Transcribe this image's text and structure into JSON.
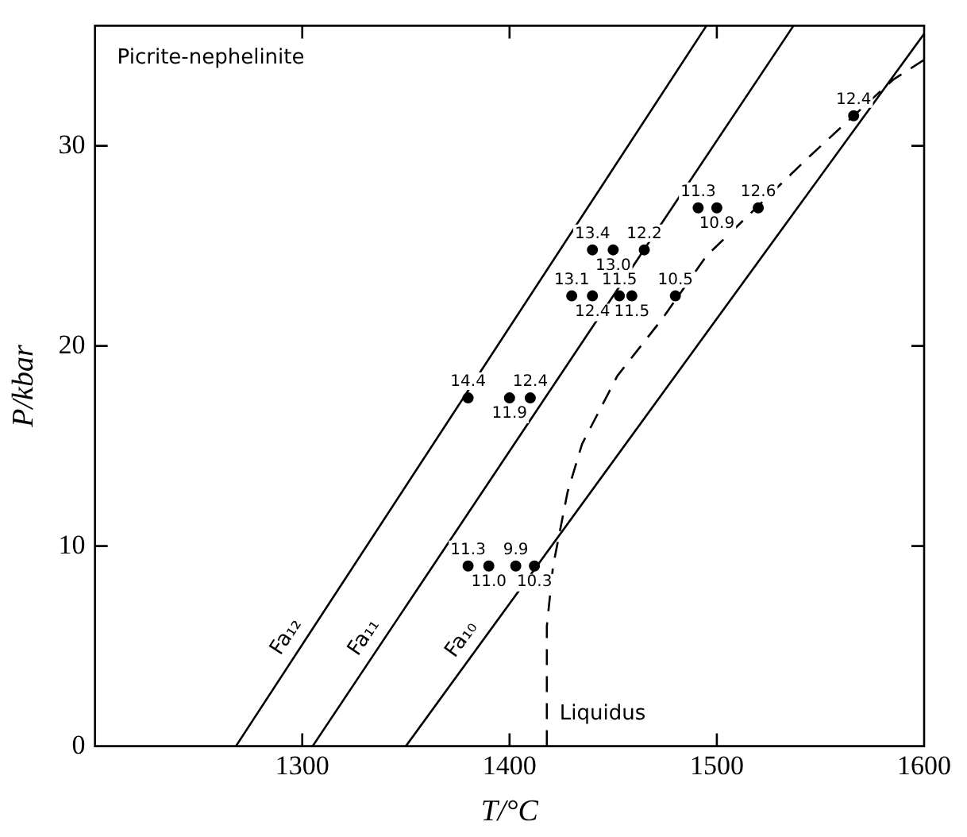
{
  "chart_data": {
    "type": "scatter",
    "xlabel": "T/°C",
    "ylabel": "P/kbar",
    "xlim": [
      1200,
      1600
    ],
    "xticks": [
      1300,
      1400,
      1500,
      1600
    ],
    "ylim": [
      0,
      36
    ],
    "yticks": [
      0,
      10,
      20,
      30
    ],
    "grid": false,
    "legend": false,
    "marker": "circle",
    "series": [
      {
        "type": "scatter",
        "color": "#000000",
        "x": [
          1566,
          1491,
          1500,
          1520,
          1440,
          1450,
          1465,
          1430,
          1440,
          1453,
          1459,
          1480,
          1380,
          1400,
          1410,
          1380,
          1390,
          1403,
          1412
        ],
        "values": [
          31.5,
          26.9,
          26.9,
          26.9,
          24.8,
          24.8,
          24.8,
          22.5,
          22.5,
          22.5,
          22.5,
          22.5,
          17.4,
          17.4,
          17.4,
          9,
          9,
          9,
          9
        ]
      },
      {
        "type": "line",
        "name": "Fa₁₂",
        "color": "#000000",
        "line_style": "solid",
        "marker": "none",
        "x": [
          1268,
          1495
        ],
        "values": [
          0,
          36
        ]
      },
      {
        "type": "line",
        "name": "Fa₁₁",
        "color": "#000000",
        "line_style": "solid",
        "marker": "none",
        "x": [
          1305,
          1537
        ],
        "values": [
          0,
          36
        ]
      },
      {
        "type": "line",
        "name": "Fa₁₀",
        "color": "#000000",
        "line_style": "solid",
        "marker": "none",
        "x": [
          1350,
          1600
        ],
        "values": [
          0,
          35.6
        ]
      },
      {
        "type": "line",
        "name": "Liquidus",
        "color": "#000000",
        "line_style": "dashed",
        "marker": "none",
        "x": [
          1418,
          1418,
          1421,
          1428,
          1435,
          1452,
          1474,
          1495,
          1520,
          1545,
          1566,
          1585,
          1600
        ],
        "values": [
          0,
          6,
          9,
          12.7,
          15.1,
          18.5,
          21.4,
          24.5,
          27,
          29.5,
          31.5,
          33.3,
          34.3
        ]
      }
    ],
    "annotations": [
      "Picrite-nephelinite",
      {
        "text": "12.4",
        "x": 1566,
        "y": 31.5
      },
      {
        "text": "11.3",
        "x": 1491,
        "y": 26.9
      },
      {
        "text": "10.9",
        "x": 1500,
        "y": 26.9
      },
      {
        "text": "12.6",
        "x": 1520,
        "y": 26.9
      },
      {
        "text": "13.4",
        "x": 1440,
        "y": 24.8
      },
      {
        "text": "13.0",
        "x": 1450,
        "y": 24.8
      },
      {
        "text": "12.2",
        "x": 1465,
        "y": 24.8
      },
      {
        "text": "13.1",
        "x": 1430,
        "y": 22.5
      },
      {
        "text": "12.4",
        "x": 1440,
        "y": 22.5
      },
      {
        "text": "11.5",
        "x": 1453,
        "y": 22.5
      },
      {
        "text": "11.5",
        "x": 1459,
        "y": 22.5
      },
      {
        "text": "10.5",
        "x": 1480,
        "y": 22.5
      },
      {
        "text": "14.4",
        "x": 1380,
        "y": 17.4
      },
      {
        "text": "11.9",
        "x": 1400,
        "y": 17.4
      },
      {
        "text": "12.4",
        "x": 1410,
        "y": 17.4
      },
      {
        "text": "11.3",
        "x": 1380,
        "y": 9
      },
      {
        "text": "11.0",
        "x": 1390,
        "y": 9
      },
      {
        "text": "9.9",
        "x": 1403,
        "y": 9
      },
      {
        "text": "10.3",
        "x": 1412,
        "y": 9
      }
    ]
  }
}
